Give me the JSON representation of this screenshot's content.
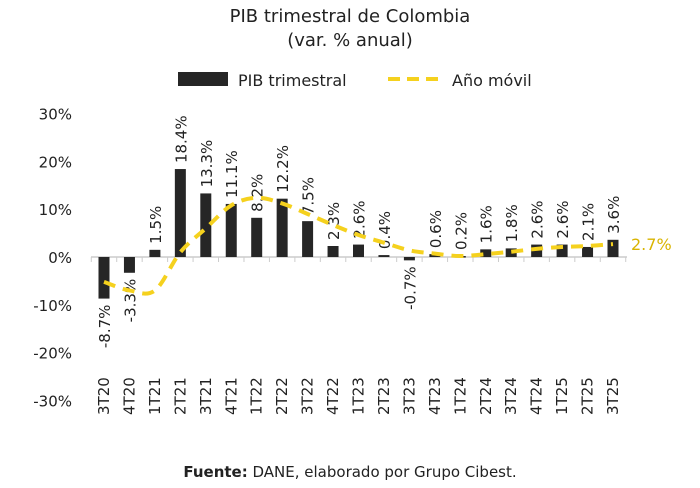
{
  "chart_data": {
    "type": "bar",
    "title": "PIB trimestral de Colombia",
    "subtitle": "(var. % anual)",
    "source_label": "Fuente:",
    "source_text": "DANE, elaborado por Grupo Cibest.",
    "categories": [
      "3T20",
      "4T20",
      "1T21",
      "2T21",
      "3T21",
      "4T21",
      "1T22",
      "2T22",
      "3T22",
      "4T22",
      "1T23",
      "2T23",
      "3T23",
      "4T23",
      "1T24",
      "2T24",
      "3T24",
      "4T24",
      "1T25",
      "2T25",
      "3T25"
    ],
    "series": [
      {
        "name": "PIB trimestral",
        "type": "bar",
        "color": "#262626",
        "values": [
          -8.7,
          -3.3,
          1.5,
          18.4,
          13.3,
          11.1,
          8.2,
          12.2,
          7.5,
          2.3,
          2.6,
          0.4,
          -0.7,
          0.6,
          0.2,
          1.6,
          1.8,
          2.6,
          2.6,
          2.1,
          3.6
        ],
        "labels": [
          "-8.7%",
          "-3.3%",
          "1.5%",
          "18.4%",
          "13.3%",
          "11.1%",
          "8.2%",
          "12.2%",
          "7.5%",
          "2.3%",
          "2.6%",
          "0.4%",
          "-0.7%",
          "0.6%",
          "0.2%",
          "1.6%",
          "1.8%",
          "2.6%",
          "2.6%",
          "2.1%",
          "3.6%"
        ]
      },
      {
        "name": "Año móvil",
        "type": "line",
        "style": "dashed",
        "color": "#F5D11E",
        "values": [
          -5.2,
          -7.0,
          -7.0,
          1.0,
          6.0,
          10.8,
          12.4,
          11.2,
          9.0,
          6.7,
          4.6,
          3.0,
          1.4,
          0.7,
          0.2,
          0.6,
          1.1,
          1.7,
          2.1,
          2.3,
          2.7
        ],
        "end_label": "2.7%"
      }
    ],
    "yticks": [
      "30%",
      "20%",
      "10%",
      "0%",
      "-10%",
      "-20%",
      "-30%"
    ],
    "ylim": [
      -30,
      30
    ],
    "grid": false,
    "legend_position": "top"
  }
}
